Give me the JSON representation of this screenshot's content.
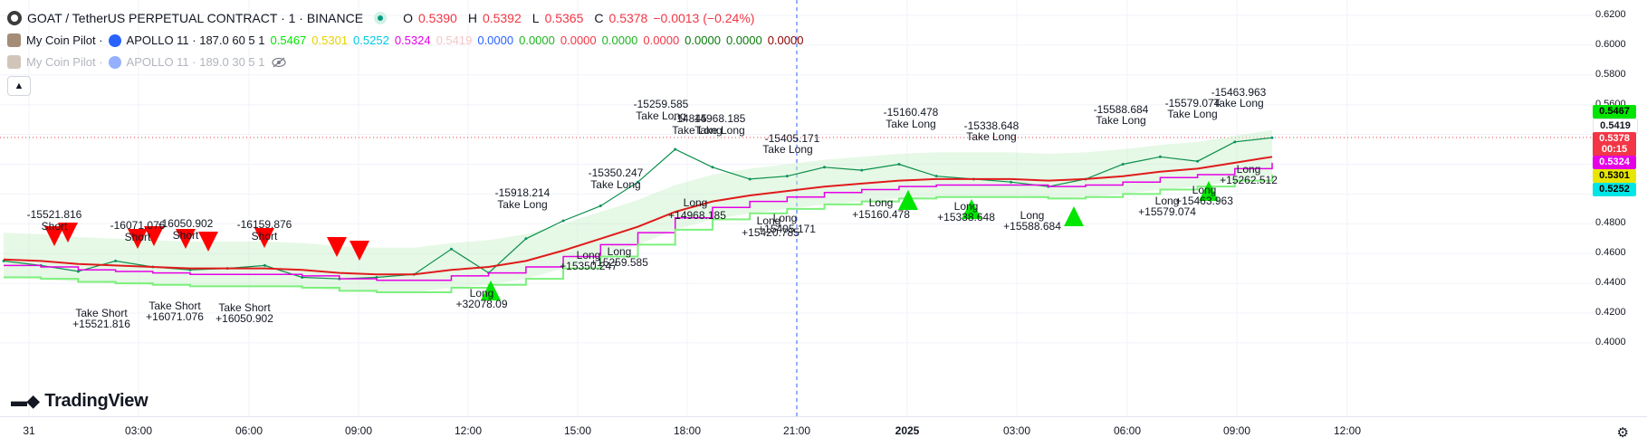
{
  "header": {
    "symbol": "GOAT / TetherUS PERPETUAL CONTRACT · 1 · BINANCE",
    "ohlc": [
      {
        "k": "O",
        "v": "0.5390"
      },
      {
        "k": "H",
        "v": "0.5392"
      },
      {
        "k": "L",
        "v": "0.5365"
      },
      {
        "k": "C",
        "v": "0.5378"
      }
    ],
    "change": "−0.0013 (−0.24%)"
  },
  "indicator1": {
    "name": "My Coin Pilot ·",
    "script": "APOLLO 11 · 187.0 60 5 1",
    "values": [
      {
        "v": "0.5467",
        "color": "#00e600"
      },
      {
        "v": "0.5301",
        "color": "#e6d200"
      },
      {
        "v": "0.5252",
        "color": "#00c8e6"
      },
      {
        "v": "0.5324",
        "color": "#e600e6"
      },
      {
        "v": "0.5419",
        "color": "#f5c6c6"
      },
      {
        "v": "0.0000",
        "color": "#2962ff"
      },
      {
        "v": "0.0000",
        "color": "#1fb31f"
      },
      {
        "v": "0.0000",
        "color": "#f23645"
      },
      {
        "v": "0.0000",
        "color": "#1fb31f"
      },
      {
        "v": "0.0000",
        "color": "#f23645"
      },
      {
        "v": "0.0000",
        "color": "#0a7a0a"
      },
      {
        "v": "0.0000",
        "color": "#0a7a0a"
      },
      {
        "v": "0.0000",
        "color": "#8b0000"
      }
    ]
  },
  "indicator2": {
    "name": "My Coin Pilot ·",
    "script": "APOLLO 11 · 189.0 30 5 1"
  },
  "logo": "TradingView",
  "price_axis": {
    "ticks": [
      "0.6200",
      "0.6000",
      "0.5800",
      "0.5600",
      "0.5400",
      "0.5200",
      "0.5000",
      "0.4800",
      "0.4600",
      "0.4400",
      "0.4200",
      "0.4000"
    ],
    "tags": [
      {
        "v": "0.5467",
        "bg": "#00e600",
        "fg": "#000000"
      },
      {
        "v": "0.5419",
        "bg": "#ffffff",
        "fg": "#131722"
      },
      {
        "v": "0.5378",
        "bg": "#f23645",
        "fg": "#ffffff"
      },
      {
        "v": "00:15",
        "bg": "#f23645",
        "fg": "#ffffff"
      },
      {
        "v": "0.5324",
        "bg": "#e600e6",
        "fg": "#ffffff"
      },
      {
        "v": "0.5301",
        "bg": "#e6e600",
        "fg": "#000000"
      },
      {
        "v": "0.5252",
        "bg": "#00e6e6",
        "fg": "#000000"
      }
    ]
  },
  "time_axis": {
    "ticks": [
      "31",
      "03:00",
      "06:00",
      "09:00",
      "12:00",
      "15:00",
      "18:00",
      "21:00",
      "2025",
      "03:00",
      "06:00",
      "09:00",
      "12:00"
    ]
  },
  "annotations": [
    {
      "text": "-15521.816",
      "x": 60,
      "y": 237
    },
    {
      "text": "Short",
      "x": 60,
      "y": 250
    },
    {
      "text": "-16071.076",
      "x": 152,
      "y": 249
    },
    {
      "text": "Short",
      "x": 152,
      "y": 262
    },
    {
      "text": "-16050.902",
      "x": 205,
      "y": 247
    },
    {
      "text": "Short",
      "x": 205,
      "y": 260
    },
    {
      "text": "-16159.876",
      "x": 292,
      "y": 248
    },
    {
      "text": "Short",
      "x": 292,
      "y": 261
    },
    {
      "text": "Take Short",
      "x": 112,
      "y": 346
    },
    {
      "text": "+15521.816",
      "x": 112,
      "y": 358
    },
    {
      "text": "Take Short",
      "x": 193,
      "y": 338
    },
    {
      "text": "+16071.076",
      "x": 193,
      "y": 350
    },
    {
      "text": "Take Short",
      "x": 270,
      "y": 340
    },
    {
      "text": "+16050.902",
      "x": 270,
      "y": 352
    },
    {
      "text": "-15918.214",
      "x": 577,
      "y": 213
    },
    {
      "text": "Take Long",
      "x": 577,
      "y": 226
    },
    {
      "text": "Long",
      "x": 532,
      "y": 324
    },
    {
      "text": "+32078.09",
      "x": 532,
      "y": 336
    },
    {
      "text": "-15350.247",
      "x": 680,
      "y": 191
    },
    {
      "text": "Take Long",
      "x": 680,
      "y": 204
    },
    {
      "text": "Long",
      "x": 650,
      "y": 282
    },
    {
      "text": "+15350.247",
      "x": 650,
      "y": 294
    },
    {
      "text": "Long",
      "x": 684,
      "y": 278
    },
    {
      "text": "+15259.585",
      "x": 684,
      "y": 290
    },
    {
      "text": "-15259.585",
      "x": 730,
      "y": 115
    },
    {
      "text": "Take Long",
      "x": 730,
      "y": 128
    },
    {
      "text": "-14845",
      "x": 762,
      "y": 131
    },
    {
      "text": "Take Long",
      "x": 770,
      "y": 144
    },
    {
      "text": "14968.185",
      "x": 795,
      "y": 131
    },
    {
      "text": "Take Long",
      "x": 795,
      "y": 144
    },
    {
      "text": "Long",
      "x": 768,
      "y": 224
    },
    {
      "text": "+14968.185",
      "x": 770,
      "y": 238
    },
    {
      "text": "-15405.171",
      "x": 875,
      "y": 153
    },
    {
      "text": "Take Long",
      "x": 870,
      "y": 165
    },
    {
      "text": "Long",
      "x": 849,
      "y": 244
    },
    {
      "text": "+15420.785",
      "x": 851,
      "y": 257
    },
    {
      "text": "Long",
      "x": 867,
      "y": 241
    },
    {
      "text": "+15405.171",
      "x": 869,
      "y": 253
    },
    {
      "text": "-15160.478",
      "x": 1006,
      "y": 124
    },
    {
      "text": "Take Long",
      "x": 1006,
      "y": 137
    },
    {
      "text": "Long",
      "x": 973,
      "y": 224
    },
    {
      "text": "+15160.478",
      "x": 973,
      "y": 237
    },
    {
      "text": "-15338.648",
      "x": 1095,
      "y": 139
    },
    {
      "text": "Take Long",
      "x": 1095,
      "y": 151
    },
    {
      "text": "Long",
      "x": 1067,
      "y": 228
    },
    {
      "text": "+15338.648",
      "x": 1067,
      "y": 240
    },
    {
      "text": "Long",
      "x": 1140,
      "y": 238
    },
    {
      "text": "+15588.684",
      "x": 1140,
      "y": 250
    },
    {
      "text": "-15588.684",
      "x": 1238,
      "y": 121
    },
    {
      "text": "Take Long",
      "x": 1238,
      "y": 133
    },
    {
      "text": "Long",
      "x": 1289,
      "y": 222
    },
    {
      "text": "+15579.074",
      "x": 1289,
      "y": 234
    },
    {
      "text": "-15579.074",
      "x": 1317,
      "y": 114
    },
    {
      "text": "Take Long",
      "x": 1317,
      "y": 126
    },
    {
      "text": "-15463.963",
      "x": 1368,
      "y": 102
    },
    {
      "text": "Take Long",
      "x": 1368,
      "y": 114
    },
    {
      "text": "Long",
      "x": 1330,
      "y": 210
    },
    {
      "text": "+15463.963",
      "x": 1330,
      "y": 222
    },
    {
      "text": "Long",
      "x": 1379,
      "y": 187
    },
    {
      "text": "+15262.512",
      "x": 1379,
      "y": 199
    }
  ],
  "chart_data": {
    "type": "line",
    "title": "GOAT / TetherUS PERPETUAL CONTRACT · 1 · BINANCE",
    "xlabel": "",
    "ylabel": "",
    "ylim": [
      0.39,
      0.625
    ],
    "x": [
      "31 00:00",
      "31 01:00",
      "31 02:00",
      "31 03:00",
      "31 04:00",
      "31 05:00",
      "31 06:00",
      "31 07:00",
      "31 08:00",
      "31 09:00",
      "31 10:00",
      "31 11:00",
      "31 12:00",
      "31 13:00",
      "31 14:00",
      "31 15:00",
      "31 16:00",
      "31 17:00",
      "31 18:00",
      "31 19:00",
      "31 20:00",
      "31 21:00",
      "31 22:00",
      "31 23:00",
      "2025 00:00",
      "2025 01:00",
      "2025 02:00",
      "2025 03:00",
      "2025 04:00",
      "2025 05:00",
      "2025 06:00",
      "2025 07:00",
      "2025 08:00",
      "2025 09:00",
      "2025 09:30"
    ],
    "series": [
      {
        "values": [
          0.455,
          0.452,
          0.448,
          0.455,
          0.451,
          0.449,
          0.45,
          0.452,
          0.444,
          0.443,
          0.444,
          0.446,
          0.463,
          0.447,
          0.47,
          0.482,
          0.492,
          0.508,
          0.53,
          0.518,
          0.51,
          0.512,
          0.518,
          0.516,
          0.52,
          0.512,
          0.51,
          0.508,
          0.505,
          0.51,
          0.52,
          0.525,
          0.522,
          0.535,
          0.5378
        ]
      },
      {
        "values": [
          0.456,
          0.455,
          0.453,
          0.452,
          0.451,
          0.45,
          0.45,
          0.45,
          0.449,
          0.447,
          0.446,
          0.446,
          0.449,
          0.451,
          0.455,
          0.462,
          0.47,
          0.478,
          0.488,
          0.495,
          0.499,
          0.502,
          0.505,
          0.507,
          0.509,
          0.51,
          0.51,
          0.51,
          0.509,
          0.51,
          0.512,
          0.515,
          0.517,
          0.521,
          0.525
        ]
      }
    ]
  }
}
